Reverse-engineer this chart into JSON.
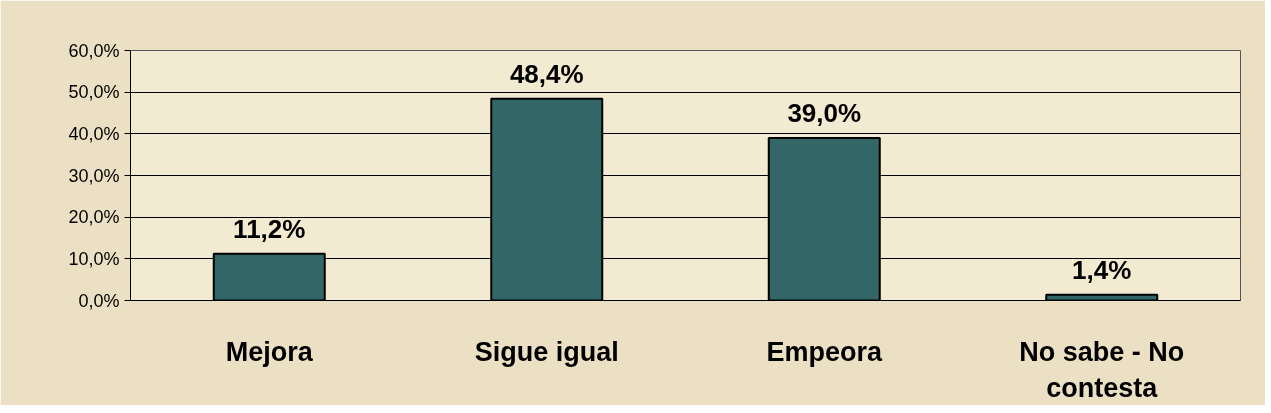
{
  "chart_data": {
    "type": "bar",
    "categories": [
      "Mejora",
      "Sigue igual",
      "Empeora",
      "No sabe - No contesta"
    ],
    "values": [
      11.2,
      48.4,
      39.0,
      1.4
    ],
    "color": "#336666",
    "value_labels": [
      "11,2%",
      "48,4%",
      "39,0%",
      "1,4%"
    ],
    "ylim": [
      0,
      60
    ],
    "yticks": [
      {
        "value": 0,
        "label": "0,0%"
      },
      {
        "value": 10,
        "label": "10,0%"
      },
      {
        "value": 20,
        "label": "20,0%"
      },
      {
        "value": 30,
        "label": "30,0%"
      },
      {
        "value": 40,
        "label": "40,0%"
      },
      {
        "value": 50,
        "label": "50,0%"
      },
      {
        "value": 60,
        "label": "60,0%"
      }
    ],
    "grid": "y"
  }
}
